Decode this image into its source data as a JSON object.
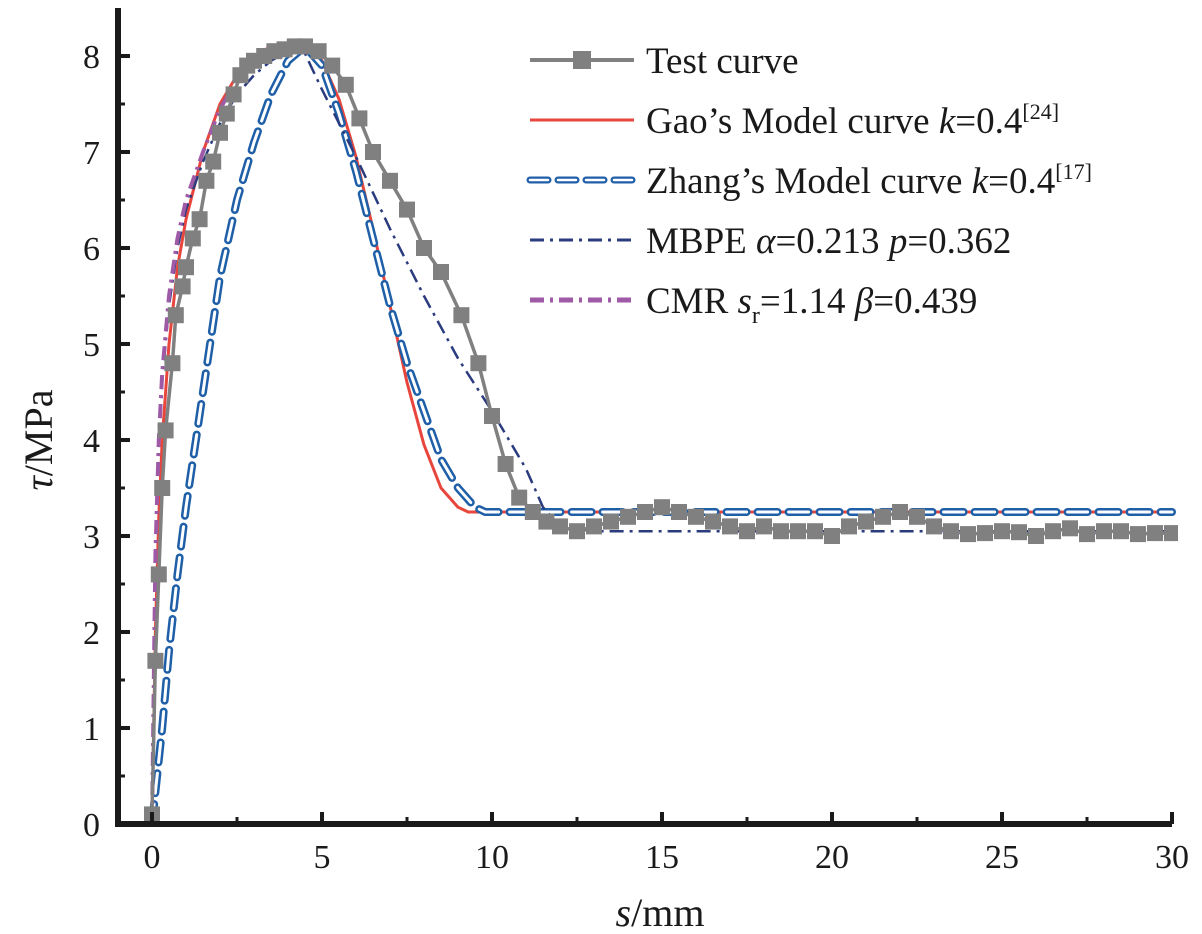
{
  "chart_data": {
    "type": "line",
    "xlabel": "s/mm",
    "ylabel": "τ/MPa",
    "xlabel_parts": {
      "var": "s",
      "unit": "/mm"
    },
    "ylabel_parts": {
      "var": "τ",
      "unit": "/MPa"
    },
    "xlim": [
      -1,
      30
    ],
    "ylim": [
      0,
      8.5
    ],
    "xticks": [
      0,
      5,
      10,
      15,
      20,
      25,
      30
    ],
    "yticks": [
      0,
      1,
      2,
      3,
      4,
      5,
      6,
      7,
      8
    ],
    "xtick_labels": [
      "0",
      "5",
      "10",
      "15",
      "20",
      "25",
      "30"
    ],
    "ytick_labels": [
      "0",
      "1",
      "2",
      "3",
      "4",
      "5",
      "6",
      "7",
      "8"
    ],
    "legend_position": "top-right",
    "series": [
      {
        "name": "Test curve",
        "legend": {
          "pre": "Test curve"
        },
        "color": "#808080",
        "style": "solid-square-markers",
        "x": [
          0.0,
          0.1,
          0.2,
          0.3,
          0.4,
          0.6,
          0.7,
          0.9,
          1.0,
          1.2,
          1.4,
          1.6,
          1.8,
          2.0,
          2.2,
          2.4,
          2.6,
          2.8,
          3.0,
          3.3,
          3.6,
          3.9,
          4.2,
          4.5,
          4.9,
          5.3,
          5.7,
          6.1,
          6.5,
          7.0,
          7.5,
          8.0,
          8.5,
          9.1,
          9.6,
          10.0,
          10.4,
          10.8,
          11.2,
          11.6,
          12.0,
          12.5,
          13.0,
          13.5,
          14.0,
          14.5,
          15.0,
          15.5,
          16.0,
          16.5,
          17.0,
          17.5,
          18.0,
          18.5,
          19.0,
          19.5,
          20.0,
          20.5,
          21.0,
          21.5,
          22.0,
          22.5,
          23.0,
          23.5,
          24.0,
          24.5,
          25.0,
          25.5,
          26.0,
          26.5,
          27.0,
          27.5,
          28.0,
          28.5,
          29.0,
          29.5,
          30.0
        ],
        "y": [
          0.1,
          1.7,
          2.6,
          3.5,
          4.1,
          4.8,
          5.3,
          5.6,
          5.8,
          6.1,
          6.3,
          6.7,
          6.9,
          7.2,
          7.4,
          7.6,
          7.8,
          7.9,
          7.95,
          8.0,
          8.05,
          8.07,
          8.1,
          8.1,
          8.05,
          7.9,
          7.7,
          7.35,
          7.0,
          6.7,
          6.4,
          6.0,
          5.75,
          5.3,
          4.8,
          4.25,
          3.75,
          3.4,
          3.25,
          3.15,
          3.1,
          3.05,
          3.1,
          3.15,
          3.2,
          3.25,
          3.3,
          3.25,
          3.2,
          3.15,
          3.1,
          3.05,
          3.1,
          3.05,
          3.05,
          3.05,
          3.0,
          3.1,
          3.15,
          3.2,
          3.25,
          3.2,
          3.1,
          3.05,
          3.02,
          3.03,
          3.05,
          3.04,
          3.0,
          3.05,
          3.08,
          3.02,
          3.05,
          3.05,
          3.02,
          3.03,
          3.03
        ]
      },
      {
        "name": "Gao's Model curve k=0.4[24]",
        "legend": {
          "pre": "Gao’s Model curve ",
          "var": "k",
          "post": "=0.4",
          "sup": "[24]"
        },
        "color": "#e8453c",
        "style": "solid",
        "x": [
          0.0,
          0.1,
          0.2,
          0.3,
          0.5,
          0.75,
          1.0,
          1.5,
          2.0,
          2.5,
          3.0,
          3.5,
          4.0,
          4.5,
          5.0,
          5.5,
          6.0,
          6.5,
          7.0,
          7.5,
          8.0,
          8.5,
          9.0,
          9.3,
          9.6,
          10.0,
          15.0,
          20.0,
          25.0,
          30.0
        ],
        "y": [
          0.0,
          2.0,
          3.2,
          4.0,
          5.0,
          5.8,
          6.3,
          7.0,
          7.5,
          7.8,
          8.0,
          8.1,
          8.12,
          8.1,
          7.95,
          7.55,
          6.95,
          6.2,
          5.4,
          4.6,
          3.95,
          3.5,
          3.3,
          3.25,
          3.25,
          3.25,
          3.25,
          3.25,
          3.25,
          3.25
        ]
      },
      {
        "name": "Zhang's Model curve k=0.4[17]",
        "legend": {
          "pre": "Zhang’s Model curve ",
          "var": "k",
          "post": "=0.4",
          "sup": "[17]"
        },
        "color": "#1f5fa8",
        "style": "hollow-dashed",
        "x": [
          0.0,
          0.15,
          0.3,
          0.5,
          0.75,
          1.0,
          1.25,
          1.5,
          1.75,
          2.0,
          2.5,
          3.0,
          3.5,
          4.0,
          4.5,
          5.0,
          5.5,
          6.0,
          6.5,
          7.0,
          7.5,
          8.0,
          8.5,
          9.0,
          9.5,
          9.8,
          10.0,
          15.0,
          20.0,
          25.0,
          30.0
        ],
        "y": [
          0.0,
          0.5,
          1.0,
          1.8,
          2.6,
          3.3,
          3.9,
          4.5,
          5.1,
          5.7,
          6.5,
          7.1,
          7.6,
          7.95,
          8.1,
          7.9,
          7.4,
          6.8,
          6.1,
          5.4,
          4.8,
          4.3,
          3.8,
          3.5,
          3.3,
          3.25,
          3.25,
          3.25,
          3.25,
          3.25,
          3.25
        ]
      },
      {
        "name": "MBPE α=0.213 p=0.362",
        "legend": {
          "pre": "MBPE ",
          "var": "α",
          "post": "=0.213 ",
          "var2": "p",
          "post2": "=0.362"
        },
        "color": "#2a3b7e",
        "style": "dash-dot",
        "x": [
          0.0,
          0.1,
          0.2,
          0.3,
          0.5,
          0.75,
          1.0,
          1.5,
          2.0,
          2.5,
          3.0,
          3.5,
          4.0,
          4.4,
          5.0,
          6.0,
          7.0,
          8.0,
          9.0,
          10.0,
          11.0,
          11.5,
          12.0,
          13.0,
          15.0,
          20.0,
          25.0,
          30.0
        ],
        "y": [
          0.0,
          2.6,
          3.9,
          4.6,
          5.4,
          6.0,
          6.4,
          6.9,
          7.3,
          7.6,
          7.8,
          7.95,
          8.05,
          8.1,
          7.65,
          6.95,
          6.2,
          5.5,
          4.85,
          4.3,
          3.7,
          3.3,
          3.1,
          3.05,
          3.05,
          3.05,
          3.05,
          3.05
        ]
      },
      {
        "name": "CMR sr=1.14 β=0.439",
        "legend": {
          "pre": "CMR ",
          "var": "s",
          "sub": "r",
          "post": "=1.14 ",
          "var2": "β",
          "post2": "=0.439"
        },
        "color": "#9e5aa6",
        "style": "dash-dot",
        "x": [
          0.0,
          0.1,
          0.2,
          0.3,
          0.5,
          0.75,
          1.0,
          1.5,
          2.0,
          2.5,
          3.0,
          3.5,
          4.0,
          4.3
        ],
        "y": [
          0.0,
          2.8,
          4.0,
          4.7,
          5.5,
          6.1,
          6.5,
          7.0,
          7.45,
          7.75,
          7.9,
          8.0,
          8.05,
          8.08
        ]
      }
    ]
  }
}
